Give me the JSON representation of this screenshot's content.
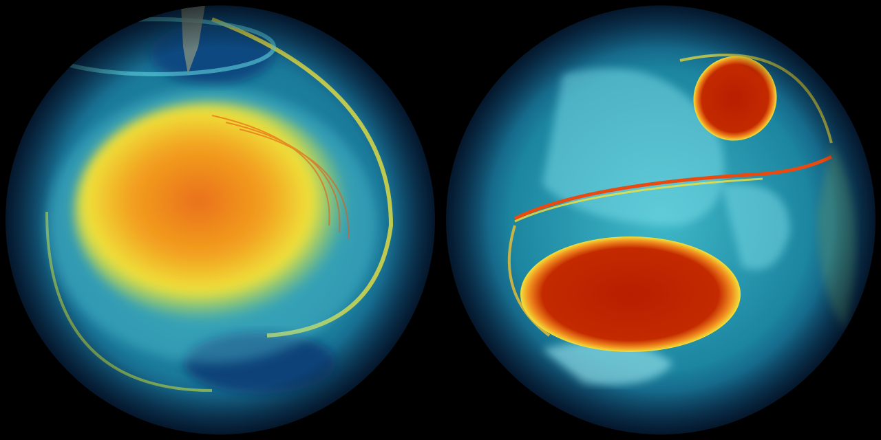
{
  "palette": {
    "background": "#000000",
    "ocean_deep": "#0b3c6e",
    "teal": "#1f8fa6",
    "cyan": "#5fd3e0",
    "yellow": "#f2e23a",
    "orange": "#f08a1e",
    "red": "#b81e00"
  },
  "globes": [
    {
      "view": "left-hemisphere"
    },
    {
      "view": "right-hemisphere"
    }
  ]
}
